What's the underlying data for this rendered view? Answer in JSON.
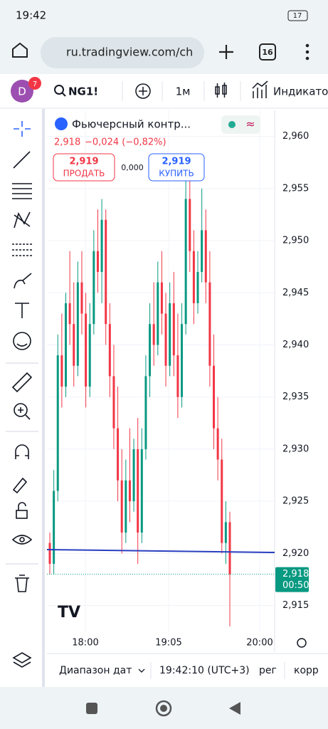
{
  "status_bar": {
    "time": "19:42",
    "battery": "17"
  },
  "browser": {
    "url": "ru.tradingview.com/ch",
    "tabs": "16"
  },
  "toolbar": {
    "avatar": "D",
    "badge": "7",
    "symbol": "NG1!",
    "interval": "1м",
    "indicators": "Индикато"
  },
  "legend": {
    "title": "Фьючерсный контр...",
    "price": "2,918",
    "change": "−0,024 (−0,82%)",
    "sell": {
      "price": "2,919",
      "label": "ПРОДАТЬ"
    },
    "spread": "0,000",
    "buy": {
      "price": "2,919",
      "label": "КУПИТЬ"
    }
  },
  "chart_data": {
    "type": "candlestick",
    "candles": [
      [
        2.921,
        2.922,
        2.918,
        2.919
      ],
      [
        2.919,
        2.928,
        2.918,
        2.926
      ],
      [
        2.926,
        2.941,
        2.925,
        2.939
      ],
      [
        2.939,
        2.943,
        2.934,
        2.936
      ],
      [
        2.936,
        2.945,
        2.935,
        2.944
      ],
      [
        2.944,
        2.949,
        2.94,
        2.942
      ],
      [
        2.942,
        2.946,
        2.936,
        2.938
      ],
      [
        2.938,
        2.948,
        2.937,
        2.946
      ],
      [
        2.946,
        2.949,
        2.941,
        2.943
      ],
      [
        2.943,
        2.945,
        2.934,
        2.936
      ],
      [
        2.936,
        2.944,
        2.935,
        2.942
      ],
      [
        2.942,
        2.951,
        2.941,
        2.949
      ],
      [
        2.949,
        2.953,
        2.945,
        2.947
      ],
      [
        2.947,
        2.954,
        2.944,
        2.952
      ],
      [
        2.952,
        2.953,
        2.94,
        2.942
      ],
      [
        2.942,
        2.944,
        2.935,
        2.937
      ],
      [
        2.937,
        2.94,
        2.93,
        2.932
      ],
      [
        2.932,
        2.936,
        2.925,
        2.927
      ],
      [
        2.927,
        2.93,
        2.92,
        2.922
      ],
      [
        2.922,
        2.929,
        2.921,
        2.927
      ],
      [
        2.927,
        2.932,
        2.923,
        2.925
      ],
      [
        2.925,
        2.931,
        2.924,
        2.93
      ],
      [
        2.93,
        2.933,
        2.919,
        2.922
      ],
      [
        2.922,
        2.932,
        2.921,
        2.93
      ],
      [
        2.93,
        2.939,
        2.929,
        2.937
      ],
      [
        2.937,
        2.944,
        2.935,
        2.942
      ],
      [
        2.942,
        2.946,
        2.938,
        2.94
      ],
      [
        2.94,
        2.948,
        2.939,
        2.946
      ],
      [
        2.946,
        2.949,
        2.941,
        2.943
      ],
      [
        2.943,
        2.945,
        2.936,
        2.938
      ],
      [
        2.938,
        2.946,
        2.937,
        2.944
      ],
      [
        2.944,
        2.947,
        2.937,
        2.939
      ],
      [
        2.939,
        2.943,
        2.933,
        2.935
      ],
      [
        2.935,
        2.944,
        2.934,
        2.942
      ],
      [
        2.942,
        2.956,
        2.941,
        2.954
      ],
      [
        2.954,
        2.956,
        2.947,
        2.949
      ],
      [
        2.949,
        2.951,
        2.942,
        2.944
      ],
      [
        2.944,
        2.949,
        2.943,
        2.947
      ],
      [
        2.947,
        2.955,
        2.946,
        2.951
      ],
      [
        2.951,
        2.953,
        2.944,
        2.946
      ],
      [
        2.946,
        2.949,
        2.936,
        2.938
      ],
      [
        2.938,
        2.941,
        2.93,
        2.932
      ],
      [
        2.932,
        2.935,
        2.927,
        2.929
      ],
      [
        2.929,
        2.931,
        2.92,
        2.921
      ],
      [
        2.921,
        2.925,
        2.919,
        2.923
      ],
      [
        2.923,
        2.924,
        2.913,
        2.918
      ]
    ],
    "up_color": "#089981",
    "down_color": "#f23645",
    "ylim": [
      2.9106,
      2.9625
    ],
    "yticks": [
      {
        "value": 2.915,
        "label": "2,915"
      },
      {
        "value": 2.92,
        "label": "2,920"
      },
      {
        "value": 2.925,
        "label": "2,925"
      },
      {
        "value": 2.93,
        "label": "2,930"
      },
      {
        "value": 2.935,
        "label": "2,935"
      },
      {
        "value": 2.94,
        "label": "2,940"
      },
      {
        "value": 2.945,
        "label": "2,945"
      },
      {
        "value": 2.95,
        "label": "2,950"
      },
      {
        "value": 2.955,
        "label": "2,955"
      },
      {
        "value": 2.96,
        "label": "2,960"
      }
    ],
    "xticks": [
      "18:00",
      "19:05",
      "20:00"
    ],
    "grid": true,
    "last_price": {
      "value": 2.918,
      "label": "2,918"
    },
    "countdown": "00:50"
  },
  "bottom_bar": {
    "date_range": "Диапазон дат",
    "time": "19:42:10 (UTC+3)",
    "mode": "рег",
    "adjust": "корр"
  }
}
